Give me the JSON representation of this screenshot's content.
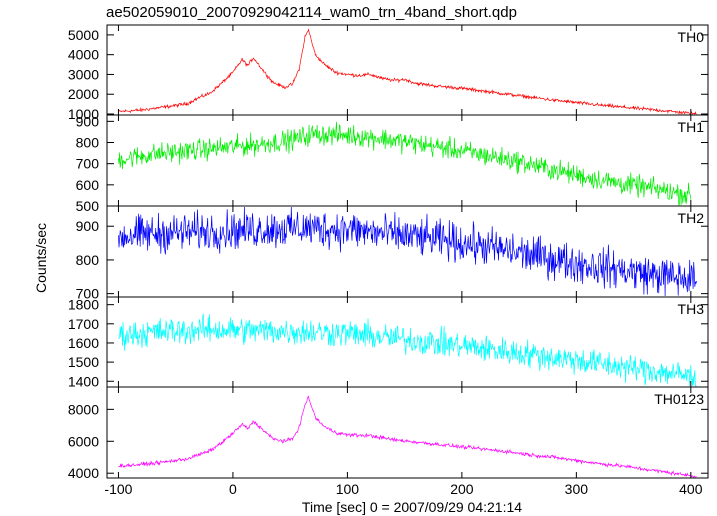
{
  "chart_data": {
    "type": "line",
    "title": "ae502059010_20070929042114_wam0_trn_4band_short.qdp",
    "xlabel": "Time [sec] 0 = 2007/09/29 04:21:14",
    "ylabel": "Counts/sec",
    "xlim": [
      -110,
      415
    ],
    "x_ticks": [
      -100,
      0,
      100,
      200,
      300,
      400
    ],
    "grid": false,
    "panels": [
      {
        "name": "TH0",
        "color": "#ff0000",
        "ylim": [
          950,
          5500
        ],
        "y_ticks": [
          1000,
          2000,
          3000,
          4000,
          5000
        ],
        "points": [
          [
            -100,
            1120
          ],
          [
            -80,
            1200
          ],
          [
            -60,
            1350
          ],
          [
            -40,
            1520
          ],
          [
            -30,
            1820
          ],
          [
            -20,
            2050
          ],
          [
            -10,
            2550
          ],
          [
            0,
            3100
          ],
          [
            8,
            3750
          ],
          [
            13,
            3450
          ],
          [
            18,
            3850
          ],
          [
            25,
            3300
          ],
          [
            35,
            2600
          ],
          [
            45,
            2350
          ],
          [
            52,
            2500
          ],
          [
            58,
            3300
          ],
          [
            63,
            4900
          ],
          [
            66,
            5250
          ],
          [
            72,
            4000
          ],
          [
            80,
            3500
          ],
          [
            90,
            3100
          ],
          [
            100,
            3000
          ],
          [
            110,
            2950
          ],
          [
            120,
            3000
          ],
          [
            130,
            2800
          ],
          [
            140,
            2700
          ],
          [
            150,
            2750
          ],
          [
            160,
            2550
          ],
          [
            180,
            2400
          ],
          [
            200,
            2300
          ],
          [
            220,
            2150
          ],
          [
            240,
            2000
          ],
          [
            260,
            1850
          ],
          [
            280,
            1700
          ],
          [
            300,
            1580
          ],
          [
            320,
            1450
          ],
          [
            340,
            1350
          ],
          [
            360,
            1250
          ],
          [
            380,
            1150
          ],
          [
            405,
            1000
          ]
        ],
        "noise": 60
      },
      {
        "name": "TH1",
        "color": "#00ee00",
        "ylim": [
          500,
          930
        ],
        "y_ticks": [
          500,
          600,
          700,
          800,
          900
        ],
        "points": [
          [
            -100,
            720
          ],
          [
            -70,
            745
          ],
          [
            -40,
            760
          ],
          [
            -10,
            775
          ],
          [
            20,
            790
          ],
          [
            50,
            810
          ],
          [
            70,
            840
          ],
          [
            100,
            835
          ],
          [
            130,
            820
          ],
          [
            160,
            795
          ],
          [
            190,
            770
          ],
          [
            220,
            740
          ],
          [
            250,
            710
          ],
          [
            280,
            670
          ],
          [
            310,
            635
          ],
          [
            340,
            605
          ],
          [
            370,
            580
          ],
          [
            400,
            550
          ]
        ],
        "noise": 35
      },
      {
        "name": "TH2",
        "color": "#0000ff",
        "ylim": [
          690,
          960
        ],
        "y_ticks": [
          700,
          800,
          900
        ],
        "points": [
          [
            -100,
            870
          ],
          [
            -60,
            880
          ],
          [
            -20,
            885
          ],
          [
            20,
            890
          ],
          [
            60,
            895
          ],
          [
            100,
            890
          ],
          [
            140,
            875
          ],
          [
            180,
            860
          ],
          [
            220,
            840
          ],
          [
            260,
            815
          ],
          [
            300,
            790
          ],
          [
            340,
            770
          ],
          [
            370,
            755
          ],
          [
            405,
            740
          ]
        ],
        "noise": 40
      },
      {
        "name": "TH3",
        "color": "#00ffff",
        "ylim": [
          1370,
          1840
        ],
        "y_ticks": [
          1400,
          1500,
          1600,
          1700,
          1800
        ],
        "points": [
          [
            -100,
            1640
          ],
          [
            -60,
            1660
          ],
          [
            -20,
            1670
          ],
          [
            20,
            1665
          ],
          [
            60,
            1660
          ],
          [
            100,
            1650
          ],
          [
            140,
            1625
          ],
          [
            180,
            1600
          ],
          [
            220,
            1570
          ],
          [
            260,
            1540
          ],
          [
            300,
            1510
          ],
          [
            340,
            1475
          ],
          [
            380,
            1445
          ],
          [
            405,
            1420
          ]
        ],
        "noise": 50
      },
      {
        "name": "TH0123",
        "color": "#ff00ff",
        "ylim": [
          3700,
          9400
        ],
        "y_ticks": [
          4000,
          6000,
          8000
        ],
        "points": [
          [
            -100,
            4450
          ],
          [
            -80,
            4550
          ],
          [
            -60,
            4700
          ],
          [
            -40,
            4900
          ],
          [
            -30,
            5150
          ],
          [
            -20,
            5400
          ],
          [
            -10,
            5900
          ],
          [
            0,
            6500
          ],
          [
            8,
            7050
          ],
          [
            13,
            6800
          ],
          [
            18,
            7250
          ],
          [
            25,
            6800
          ],
          [
            35,
            6150
          ],
          [
            45,
            6000
          ],
          [
            52,
            6150
          ],
          [
            58,
            6900
          ],
          [
            63,
            8300
          ],
          [
            66,
            8750
          ],
          [
            72,
            7500
          ],
          [
            80,
            6900
          ],
          [
            90,
            6550
          ],
          [
            100,
            6400
          ],
          [
            120,
            6350
          ],
          [
            140,
            6100
          ],
          [
            160,
            5950
          ],
          [
            180,
            5800
          ],
          [
            200,
            5650
          ],
          [
            220,
            5500
          ],
          [
            240,
            5350
          ],
          [
            260,
            5150
          ],
          [
            280,
            5000
          ],
          [
            300,
            4800
          ],
          [
            320,
            4600
          ],
          [
            340,
            4450
          ],
          [
            360,
            4250
          ],
          [
            380,
            4050
          ],
          [
            405,
            3800
          ]
        ],
        "noise": 80
      }
    ]
  },
  "colors": {
    "axis": "#000000",
    "background": "#ffffff"
  }
}
